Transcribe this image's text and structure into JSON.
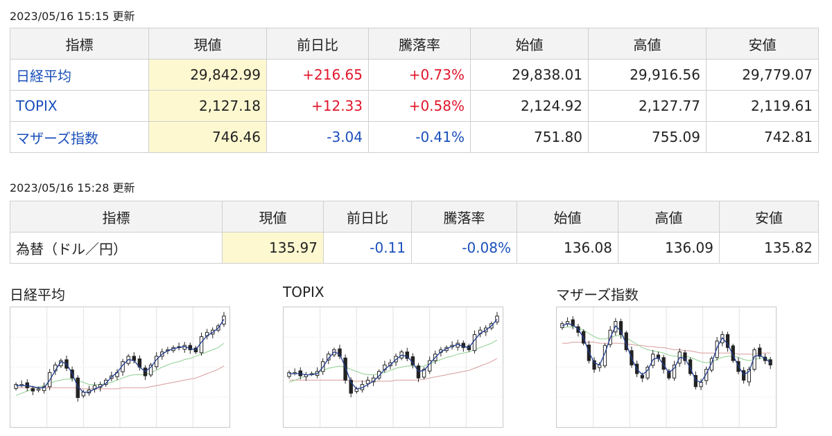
{
  "stock_section": {
    "timestamp": "2023/05/16 15:15 更新",
    "headers": [
      "指標",
      "現値",
      "前日比",
      "騰落率",
      "始値",
      "高値",
      "安値"
    ],
    "rows": [
      {
        "name": "日経平均",
        "current": "29,842.99",
        "change": "+216.65",
        "rate": "+0.73%",
        "open": "29,838.01",
        "high": "29,916.56",
        "low": "29,779.07",
        "direction": "up"
      },
      {
        "name": "TOPIX",
        "current": "2,127.18",
        "change": "+12.33",
        "rate": "+0.58%",
        "open": "2,124.92",
        "high": "2,127.77",
        "low": "2,119.61",
        "direction": "up"
      },
      {
        "name": "マザーズ指数",
        "current": "746.46",
        "change": "-3.04",
        "rate": "-0.41%",
        "open": "751.80",
        "high": "755.09",
        "low": "742.81",
        "direction": "down"
      }
    ]
  },
  "fx_section": {
    "timestamp": "2023/05/16 15:28 更新",
    "headers": [
      "指標",
      "現値",
      "前日比",
      "騰落率",
      "始値",
      "高値",
      "安値"
    ],
    "row": {
      "name": "為替（ドル／円）",
      "current": "135.97",
      "change": "-0.11",
      "rate": "-0.08%",
      "open": "136.08",
      "high": "136.09",
      "low": "135.82",
      "direction": "down"
    }
  },
  "colors": {
    "up": "#e0162b",
    "down": "#1a4fba",
    "link": "#1a4fba",
    "current_bg": "#fdf8d0",
    "header_bg": "#f3f3f3"
  },
  "chart_data": [
    {
      "type": "candlestick",
      "title": "日経平均",
      "close": [
        0.34,
        0.34,
        0.31,
        0.28,
        0.3,
        0.32,
        0.45,
        0.52,
        0.56,
        0.49,
        0.4,
        0.22,
        0.27,
        0.29,
        0.33,
        0.34,
        0.38,
        0.42,
        0.45,
        0.55,
        0.6,
        0.56,
        0.5,
        0.42,
        0.52,
        0.6,
        0.64,
        0.66,
        0.68,
        0.68,
        0.7,
        0.66,
        0.64,
        0.78,
        0.82,
        0.84,
        0.88,
        0.97
      ],
      "ma_short": [
        0.33,
        0.33,
        0.33,
        0.32,
        0.31,
        0.31,
        0.38,
        0.47,
        0.55,
        0.53,
        0.44,
        0.32,
        0.27,
        0.27,
        0.3,
        0.32,
        0.35,
        0.41,
        0.45,
        0.52,
        0.57,
        0.56,
        0.5,
        0.46,
        0.5,
        0.57,
        0.62,
        0.65,
        0.67,
        0.68,
        0.69,
        0.67,
        0.66,
        0.73,
        0.79,
        0.82,
        0.86,
        0.94
      ],
      "ma_mid": [
        0.24,
        0.26,
        0.28,
        0.3,
        0.32,
        0.33,
        0.35,
        0.37,
        0.38,
        0.39,
        0.39,
        0.38,
        0.36,
        0.34,
        0.34,
        0.34,
        0.35,
        0.36,
        0.38,
        0.4,
        0.42,
        0.43,
        0.43,
        0.43,
        0.45,
        0.47,
        0.5,
        0.52,
        0.54,
        0.55,
        0.57,
        0.58,
        0.6,
        0.62,
        0.64,
        0.66,
        0.68,
        0.72
      ],
      "ma_long": [
        0.31,
        0.31,
        0.31,
        0.31,
        0.31,
        0.31,
        0.31,
        0.31,
        0.31,
        0.31,
        0.31,
        0.31,
        0.3,
        0.3,
        0.3,
        0.3,
        0.3,
        0.3,
        0.3,
        0.31,
        0.31,
        0.31,
        0.31,
        0.31,
        0.32,
        0.33,
        0.34,
        0.35,
        0.36,
        0.37,
        0.38,
        0.39,
        0.4,
        0.42,
        0.44,
        0.46,
        0.48,
        0.51
      ]
    },
    {
      "type": "candlestick",
      "title": "TOPIX",
      "close": [
        0.45,
        0.45,
        0.42,
        0.43,
        0.44,
        0.46,
        0.55,
        0.62,
        0.66,
        0.6,
        0.38,
        0.26,
        0.3,
        0.34,
        0.38,
        0.4,
        0.46,
        0.52,
        0.54,
        0.6,
        0.64,
        0.58,
        0.52,
        0.4,
        0.48,
        0.56,
        0.62,
        0.66,
        0.68,
        0.7,
        0.72,
        0.68,
        0.66,
        0.8,
        0.84,
        0.86,
        0.9,
        0.97
      ],
      "ma_short": [
        0.44,
        0.44,
        0.44,
        0.43,
        0.43,
        0.44,
        0.5,
        0.58,
        0.64,
        0.62,
        0.5,
        0.36,
        0.3,
        0.31,
        0.34,
        0.37,
        0.42,
        0.48,
        0.52,
        0.57,
        0.61,
        0.6,
        0.54,
        0.46,
        0.47,
        0.53,
        0.59,
        0.64,
        0.67,
        0.69,
        0.71,
        0.69,
        0.68,
        0.75,
        0.81,
        0.84,
        0.88,
        0.94
      ],
      "ma_mid": [
        0.36,
        0.38,
        0.4,
        0.42,
        0.44,
        0.45,
        0.47,
        0.49,
        0.5,
        0.51,
        0.5,
        0.48,
        0.46,
        0.44,
        0.43,
        0.43,
        0.44,
        0.45,
        0.47,
        0.49,
        0.5,
        0.51,
        0.51,
        0.5,
        0.51,
        0.53,
        0.55,
        0.57,
        0.59,
        0.6,
        0.62,
        0.63,
        0.64,
        0.66,
        0.68,
        0.7,
        0.72,
        0.75
      ],
      "ma_long": [
        0.38,
        0.38,
        0.38,
        0.38,
        0.38,
        0.38,
        0.38,
        0.38,
        0.38,
        0.38,
        0.38,
        0.37,
        0.37,
        0.37,
        0.37,
        0.37,
        0.37,
        0.37,
        0.37,
        0.38,
        0.38,
        0.38,
        0.38,
        0.38,
        0.39,
        0.4,
        0.41,
        0.42,
        0.43,
        0.44,
        0.45,
        0.46,
        0.47,
        0.49,
        0.51,
        0.53,
        0.55,
        0.58
      ]
    },
    {
      "type": "candlestick",
      "title": "マザーズ指数",
      "close": [
        0.9,
        0.92,
        0.88,
        0.82,
        0.72,
        0.56,
        0.48,
        0.52,
        0.7,
        0.84,
        0.92,
        0.8,
        0.66,
        0.52,
        0.44,
        0.4,
        0.5,
        0.62,
        0.58,
        0.48,
        0.4,
        0.52,
        0.64,
        0.56,
        0.44,
        0.32,
        0.36,
        0.48,
        0.58,
        0.74,
        0.8,
        0.68,
        0.56,
        0.46,
        0.38,
        0.48,
        0.66,
        0.6,
        0.56,
        0.52
      ],
      "ma_short": [
        0.88,
        0.9,
        0.89,
        0.85,
        0.77,
        0.64,
        0.54,
        0.52,
        0.63,
        0.77,
        0.88,
        0.83,
        0.71,
        0.58,
        0.48,
        0.43,
        0.47,
        0.57,
        0.59,
        0.52,
        0.45,
        0.49,
        0.59,
        0.58,
        0.49,
        0.38,
        0.36,
        0.44,
        0.54,
        0.68,
        0.77,
        0.71,
        0.61,
        0.51,
        0.43,
        0.46,
        0.6,
        0.61,
        0.58,
        0.54
      ],
      "ma_mid": [
        0.86,
        0.87,
        0.87,
        0.86,
        0.84,
        0.81,
        0.78,
        0.76,
        0.76,
        0.77,
        0.79,
        0.79,
        0.77,
        0.74,
        0.71,
        0.68,
        0.66,
        0.65,
        0.64,
        0.63,
        0.61,
        0.6,
        0.6,
        0.6,
        0.59,
        0.57,
        0.55,
        0.54,
        0.55,
        0.57,
        0.59,
        0.6,
        0.6,
        0.59,
        0.57,
        0.56,
        0.57,
        0.58,
        0.58,
        0.57
      ],
      "ma_long": [
        0.72,
        0.72,
        0.73,
        0.73,
        0.73,
        0.73,
        0.73,
        0.72,
        0.72,
        0.72,
        0.72,
        0.72,
        0.71,
        0.71,
        0.7,
        0.7,
        0.69,
        0.69,
        0.68,
        0.68,
        0.67,
        0.66,
        0.66,
        0.65,
        0.65,
        0.64,
        0.63,
        0.63,
        0.63,
        0.63,
        0.63,
        0.63,
        0.63,
        0.62,
        0.62,
        0.62,
        0.62,
        0.63,
        0.63,
        0.63
      ]
    }
  ]
}
